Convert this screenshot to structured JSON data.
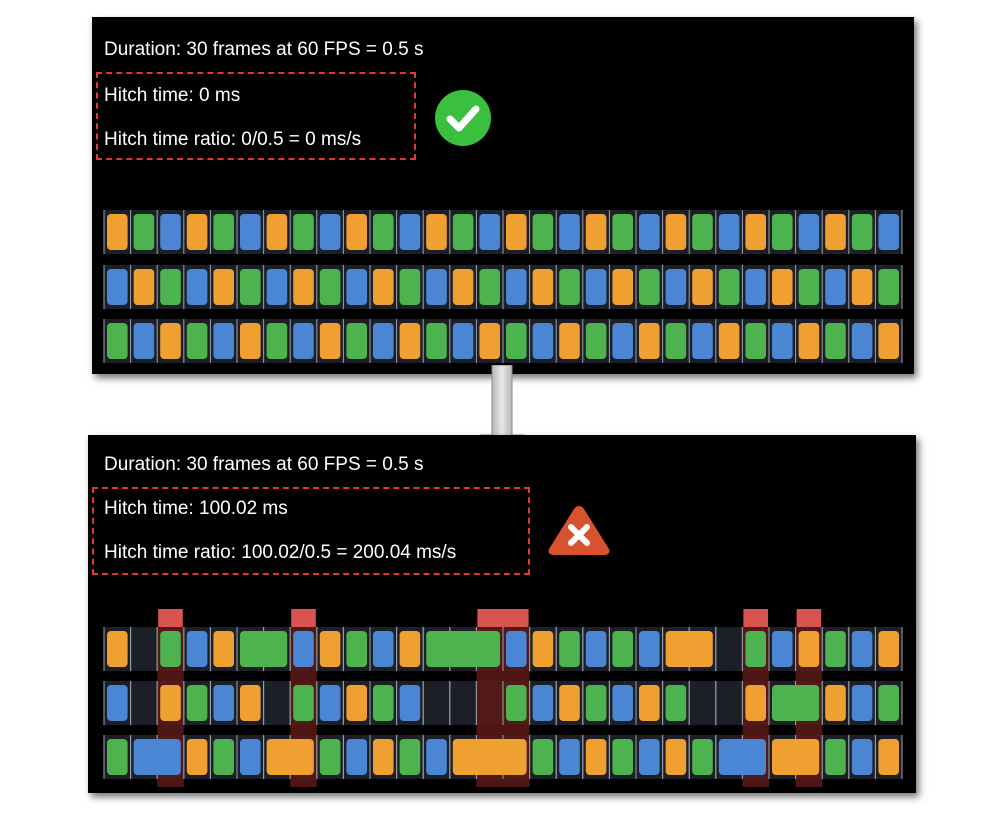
{
  "top_panel": {
    "duration": "Duration: 30 frames at 60 FPS = 0.5 s",
    "hitch_time": "Hitch time: 0 ms",
    "hitch_ratio": "Hitch time ratio: 0/0.5 = 0 ms/s",
    "status_icon": "checkmark-icon",
    "status_color": "#3bbf3f"
  },
  "bottom_panel": {
    "duration": "Duration: 30 frames at 60 FPS = 0.5 s",
    "hitch_time": "Hitch time: 100.02 ms",
    "hitch_ratio": "Hitch time ratio: 100.02/0.5 = 200.04 ms/s",
    "status_icon": "x-warning-icon",
    "status_color": "#d9522f"
  },
  "colors": {
    "orange": "#f0a030",
    "green": "#4cb34f",
    "blue": "#4a86d4",
    "hitch_red": "#d9534f",
    "hitch_shade": "#5a1a17",
    "dash_red": "#e03a2f"
  },
  "frame_pattern": {
    "top_rows": [
      [
        "O",
        "G",
        "B",
        "O",
        "G",
        "B",
        "O",
        "G",
        "B",
        "O",
        "G",
        "B",
        "O",
        "G",
        "B",
        "O",
        "G",
        "B",
        "O",
        "G",
        "B",
        "O",
        "G",
        "B",
        "O",
        "G",
        "B",
        "O",
        "G",
        "B"
      ],
      [
        "B",
        "O",
        "G",
        "B",
        "O",
        "G",
        "B",
        "O",
        "G",
        "B",
        "O",
        "G",
        "B",
        "O",
        "G",
        "B",
        "O",
        "G",
        "B",
        "O",
        "G",
        "B",
        "O",
        "G",
        "B",
        "O",
        "G",
        "B",
        "O",
        "G"
      ],
      [
        "G",
        "B",
        "O",
        "G",
        "B",
        "O",
        "G",
        "B",
        "O",
        "G",
        "B",
        "O",
        "G",
        "B",
        "O",
        "G",
        "B",
        "O",
        "G",
        "B",
        "O",
        "G",
        "B",
        "O",
        "G",
        "B",
        "O",
        "G",
        "B",
        "O"
      ]
    ],
    "bottom_rows": [
      [
        [
          "O",
          0,
          1
        ],
        [
          "G",
          2,
          1
        ],
        [
          "B",
          3,
          1
        ],
        [
          "O",
          4,
          1
        ],
        [
          "G",
          5,
          2
        ],
        [
          "B",
          7,
          1
        ],
        [
          "O",
          8,
          1
        ],
        [
          "G",
          9,
          1
        ],
        [
          "B",
          10,
          1
        ],
        [
          "O",
          11,
          1
        ],
        [
          "G",
          12,
          3
        ],
        [
          "B",
          15,
          1
        ],
        [
          "O",
          16,
          1
        ],
        [
          "G",
          17,
          1
        ],
        [
          "B",
          18,
          1
        ],
        [
          "G",
          19,
          1
        ],
        [
          "B",
          20,
          1
        ],
        [
          "O",
          21,
          2
        ],
        [
          "G",
          24,
          1
        ],
        [
          "B",
          25,
          1
        ],
        [
          "O",
          26,
          1
        ],
        [
          "G",
          27,
          1
        ],
        [
          "B",
          28,
          1
        ],
        [
          "O",
          29,
          1
        ]
      ],
      [
        [
          "B",
          0,
          1
        ],
        [
          "O",
          2,
          1
        ],
        [
          "G",
          3,
          1
        ],
        [
          "B",
          4,
          1
        ],
        [
          "O",
          5,
          1
        ],
        [
          "G",
          7,
          1
        ],
        [
          "B",
          8,
          1
        ],
        [
          "O",
          9,
          1
        ],
        [
          "G",
          10,
          1
        ],
        [
          "B",
          11,
          1
        ],
        [
          "G",
          15,
          1
        ],
        [
          "B",
          16,
          1
        ],
        [
          "O",
          17,
          1
        ],
        [
          "G",
          18,
          1
        ],
        [
          "B",
          19,
          1
        ],
        [
          "O",
          20,
          1
        ],
        [
          "G",
          21,
          1
        ],
        [
          "O",
          24,
          1
        ],
        [
          "G",
          25,
          2
        ],
        [
          "O",
          27,
          1
        ],
        [
          "B",
          28,
          1
        ],
        [
          "G",
          29,
          1
        ]
      ],
      [
        [
          "G",
          0,
          1
        ],
        [
          "B",
          1,
          2
        ],
        [
          "O",
          3,
          1
        ],
        [
          "G",
          4,
          1
        ],
        [
          "B",
          5,
          1
        ],
        [
          "O",
          6,
          2
        ],
        [
          "G",
          8,
          1
        ],
        [
          "B",
          9,
          1
        ],
        [
          "O",
          10,
          1
        ],
        [
          "G",
          11,
          1
        ],
        [
          "B",
          12,
          1
        ],
        [
          "O",
          13,
          3
        ],
        [
          "G",
          16,
          1
        ],
        [
          "B",
          17,
          1
        ],
        [
          "O",
          18,
          1
        ],
        [
          "G",
          19,
          1
        ],
        [
          "B",
          20,
          1
        ],
        [
          "O",
          21,
          1
        ],
        [
          "G",
          22,
          1
        ],
        [
          "B",
          23,
          2
        ],
        [
          "O",
          25,
          2
        ],
        [
          "G",
          27,
          1
        ],
        [
          "B",
          28,
          1
        ],
        [
          "O",
          29,
          1
        ]
      ]
    ],
    "hitch_slots": [
      [
        2,
        1
      ],
      [
        7,
        1
      ],
      [
        14,
        2
      ],
      [
        24,
        1
      ],
      [
        26,
        1
      ]
    ]
  }
}
